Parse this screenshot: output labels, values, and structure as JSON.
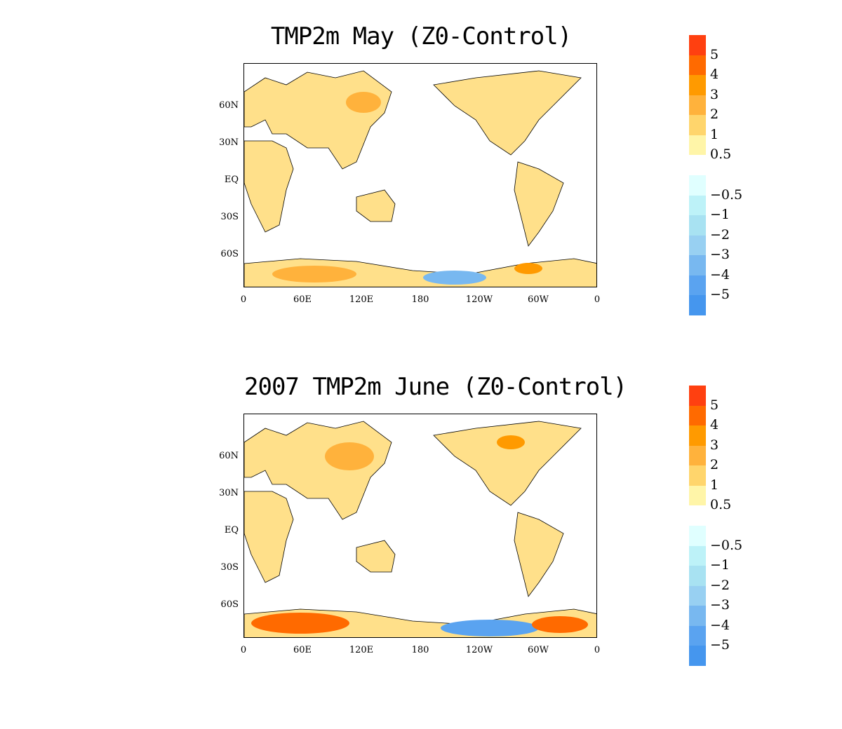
{
  "panels": [
    {
      "title": "TMP2m May (Z0-Control)",
      "lat_ticks": [
        "60N",
        "30N",
        "EQ",
        "30S",
        "60S"
      ],
      "lon_ticks": [
        "0",
        "60E",
        "120E",
        "180",
        "120W",
        "60W",
        "0"
      ]
    },
    {
      "title": "2007 TMP2m June (Z0-Control)",
      "lat_ticks": [
        "60N",
        "30N",
        "EQ",
        "30S",
        "60S"
      ],
      "lon_ticks": [
        "0",
        "60E",
        "120E",
        "180",
        "120W",
        "60W",
        "0"
      ]
    }
  ],
  "colorbar": {
    "labels": [
      "5",
      "4",
      "3",
      "2",
      "1",
      "0.5",
      "-0.5",
      "-1",
      "-2",
      "-3",
      "-4",
      "-5"
    ],
    "colors_warm": [
      "#ff4010",
      "#ff6a00",
      "#ff9a00",
      "#ffb23c",
      "#ffd56c",
      "#fff5a8",
      "#ffffff"
    ],
    "colors_cool": [
      "#e0ffff",
      "#bdf2f8",
      "#a8e2f2",
      "#98d0f2",
      "#78b8f0",
      "#5aa3f0",
      "#4596ee"
    ]
  }
}
